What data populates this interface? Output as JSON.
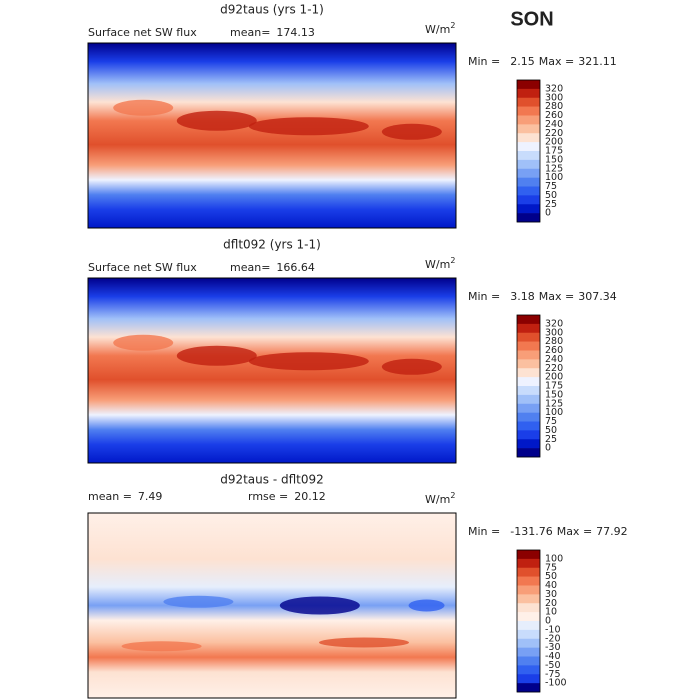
{
  "header": {
    "season": "SON"
  },
  "panels": [
    {
      "title": "d92taus (yrs 1-1)",
      "subtitle": "Surface net SW flux",
      "stats": [
        {
          "label": "mean=",
          "value": 174.13
        }
      ],
      "units": "W/m",
      "units_exponent": "2",
      "min_label": "Min =",
      "min_value": 2.15,
      "max_label": "Max =",
      "max_value": 321.11,
      "colorbar": {
        "labels": [
          320,
          300,
          280,
          260,
          240,
          220,
          200,
          175,
          150,
          125,
          100,
          75,
          50,
          25,
          0
        ],
        "colors": [
          "#8b0000",
          "#c02010",
          "#e0502c",
          "#f27850",
          "#f89e78",
          "#fbc0a0",
          "#fde2d2",
          "#eef2ff",
          "#c8dcfc",
          "#a0c0f8",
          "#78a0f4",
          "#5080f0",
          "#3060f0",
          "#1a3ee8",
          "#0018c8",
          "#00008b"
        ]
      }
    },
    {
      "title": "dflt092 (yrs 1-1)",
      "subtitle": "Surface net SW flux",
      "stats": [
        {
          "label": "mean=",
          "value": 166.64
        }
      ],
      "units": "W/m",
      "units_exponent": "2",
      "min_label": "Min =",
      "min_value": 3.18,
      "max_label": "Max =",
      "max_value": 307.34,
      "colorbar": {
        "labels": [
          320,
          300,
          280,
          260,
          240,
          220,
          200,
          175,
          150,
          125,
          100,
          75,
          50,
          25,
          0
        ],
        "colors": [
          "#8b0000",
          "#c02010",
          "#e0502c",
          "#f27850",
          "#f89e78",
          "#fbc0a0",
          "#fde2d2",
          "#eef2ff",
          "#c8dcfc",
          "#a0c0f8",
          "#78a0f4",
          "#5080f0",
          "#3060f0",
          "#1a3ee8",
          "#0018c8",
          "#00008b"
        ]
      }
    },
    {
      "title": "d92taus - dflt092",
      "stats": [
        {
          "label": "mean =",
          "value": 7.49
        },
        {
          "label": "rmse =",
          "value": 20.12
        }
      ],
      "units": "W/m",
      "units_exponent": "2",
      "min_label": "Min =",
      "min_value": -131.76,
      "max_label": "Max =",
      "max_value": 77.92,
      "colorbar": {
        "labels": [
          100,
          75,
          50,
          40,
          30,
          20,
          10,
          0,
          -10,
          -20,
          -30,
          -40,
          -50,
          -75,
          -100
        ],
        "colors": [
          "#8b0000",
          "#c02010",
          "#e0502c",
          "#f27850",
          "#f89e78",
          "#fbc0a0",
          "#fde2d2",
          "#fff0e8",
          "#e6eefc",
          "#c8dcfc",
          "#a0c0f8",
          "#78a0f4",
          "#5080f0",
          "#3060f0",
          "#1a3ee8",
          "#00008b"
        ]
      }
    }
  ]
}
